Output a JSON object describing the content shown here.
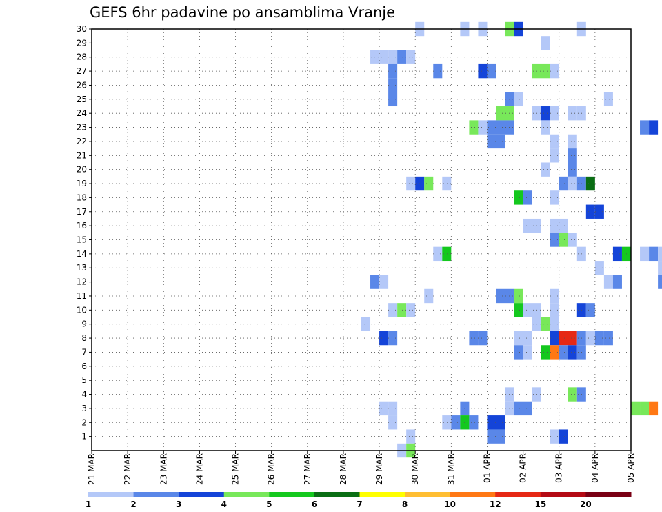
{
  "chart_data": {
    "type": "heatmap",
    "title": "GEFS 6hr padavine po ansamblima Vranje",
    "xlabel": "",
    "ylabel": "",
    "x_range": [
      "21 MAR 00Z",
      "05 APR 00Z"
    ],
    "x_step_hours": 6,
    "x_ticks": [
      "21 MAR",
      "22 MAR",
      "23 MAR",
      "24 MAR",
      "25 MAR",
      "26 MAR",
      "27 MAR",
      "28 MAR",
      "29 MAR",
      "30 MAR",
      "31 MAR",
      "01 APR",
      "02 APR",
      "03 APR",
      "04 APR",
      "05 APR"
    ],
    "y_ticks": [
      1,
      2,
      3,
      4,
      5,
      6,
      7,
      8,
      9,
      10,
      11,
      12,
      13,
      14,
      15,
      16,
      17,
      18,
      19,
      20,
      21,
      22,
      23,
      24,
      25,
      26,
      27,
      28,
      29,
      30
    ],
    "grid": true,
    "colorbar": {
      "levels": [
        "1",
        "2",
        "3",
        "4",
        "5",
        "6",
        "7",
        "8",
        "10",
        "12",
        "15",
        "20"
      ],
      "colors": [
        "#b4c8f8",
        "#5a87e8",
        "#1444d8",
        "#78e85a",
        "#14c81e",
        "#0a6e14",
        "#ffff00",
        "#ffbe32",
        "#ff7814",
        "#e62814",
        "#b40a14",
        "#7a0014"
      ]
    },
    "cells": [
      {
        "date": "30 MAR 06Z",
        "member": 30,
        "value": 1
      },
      {
        "date": "31 MAR 12Z",
        "member": 30,
        "value": 1
      },
      {
        "date": "01 APR 00Z",
        "member": 30,
        "value": 1
      },
      {
        "date": "01 APR 18Z",
        "member": 30,
        "value": 4
      },
      {
        "date": "02 APR 00Z",
        "member": 30,
        "value": 3
      },
      {
        "date": "03 APR 18Z",
        "member": 30,
        "value": 1
      },
      {
        "date": "02 APR 18Z",
        "member": 29,
        "value": 1
      },
      {
        "date": "29 MAR 00Z",
        "member": 28,
        "value": 1
      },
      {
        "date": "29 MAR 06Z",
        "member": 28,
        "value": 1
      },
      {
        "date": "29 MAR 12Z",
        "member": 28,
        "value": 1
      },
      {
        "date": "29 MAR 18Z",
        "member": 28,
        "value": 2
      },
      {
        "date": "30 MAR 00Z",
        "member": 28,
        "value": 1
      },
      {
        "date": "29 MAR 12Z",
        "member": 27,
        "value": 2
      },
      {
        "date": "30 MAR 18Z",
        "member": 27,
        "value": 2
      },
      {
        "date": "01 APR 00Z",
        "member": 27,
        "value": 3
      },
      {
        "date": "01 APR 06Z",
        "member": 27,
        "value": 2
      },
      {
        "date": "02 APR 12Z",
        "member": 27,
        "value": 4
      },
      {
        "date": "02 APR 18Z",
        "member": 27,
        "value": 4
      },
      {
        "date": "03 APR 00Z",
        "member": 27,
        "value": 1
      },
      {
        "date": "29 MAR 12Z",
        "member": 26,
        "value": 2
      },
      {
        "date": "29 MAR 12Z",
        "member": 25,
        "value": 2
      },
      {
        "date": "01 APR 18Z",
        "member": 25,
        "value": 2
      },
      {
        "date": "02 APR 00Z",
        "member": 25,
        "value": 1
      },
      {
        "date": "04 APR 12Z",
        "member": 25,
        "value": 1
      },
      {
        "date": "01 APR 12Z",
        "member": 24,
        "value": 4
      },
      {
        "date": "01 APR 18Z",
        "member": 24,
        "value": 4
      },
      {
        "date": "02 APR 12Z",
        "member": 24,
        "value": 1
      },
      {
        "date": "02 APR 18Z",
        "member": 24,
        "value": 3
      },
      {
        "date": "03 APR 00Z",
        "member": 24,
        "value": 1
      },
      {
        "date": "03 APR 12Z",
        "member": 24,
        "value": 1
      },
      {
        "date": "03 APR 18Z",
        "member": 24,
        "value": 1
      },
      {
        "date": "31 MAR 18Z",
        "member": 23,
        "value": 4
      },
      {
        "date": "01 APR 00Z",
        "member": 23,
        "value": 1
      },
      {
        "date": "01 APR 06Z",
        "member": 23,
        "value": 2
      },
      {
        "date": "01 APR 12Z",
        "member": 23,
        "value": 2
      },
      {
        "date": "01 APR 18Z",
        "member": 23,
        "value": 2
      },
      {
        "date": "02 APR 18Z",
        "member": 23,
        "value": 1
      },
      {
        "date": "05 APR 12Z",
        "member": 23,
        "value": 2
      },
      {
        "date": "05 APR 18Z",
        "member": 23,
        "value": 3
      },
      {
        "date": "01 APR 06Z",
        "member": 22,
        "value": 2
      },
      {
        "date": "01 APR 12Z",
        "member": 22,
        "value": 2
      },
      {
        "date": "03 APR 00Z",
        "member": 22,
        "value": 1
      },
      {
        "date": "03 APR 12Z",
        "member": 22,
        "value": 1
      },
      {
        "date": "03 APR 00Z",
        "member": 21,
        "value": 1
      },
      {
        "date": "03 APR 12Z",
        "member": 21,
        "value": 2
      },
      {
        "date": "02 APR 18Z",
        "member": 20,
        "value": 1
      },
      {
        "date": "03 APR 12Z",
        "member": 20,
        "value": 2
      },
      {
        "date": "30 MAR 00Z",
        "member": 19,
        "value": 1
      },
      {
        "date": "30 MAR 06Z",
        "member": 19,
        "value": 3
      },
      {
        "date": "30 MAR 12Z",
        "member": 19,
        "value": 4
      },
      {
        "date": "31 MAR 00Z",
        "member": 19,
        "value": 1
      },
      {
        "date": "03 APR 06Z",
        "member": 19,
        "value": 2
      },
      {
        "date": "03 APR 12Z",
        "member": 19,
        "value": 1
      },
      {
        "date": "03 APR 18Z",
        "member": 19,
        "value": 2
      },
      {
        "date": "04 APR 00Z",
        "member": 19,
        "value": 6
      },
      {
        "date": "02 APR 00Z",
        "member": 18,
        "value": 5
      },
      {
        "date": "02 APR 06Z",
        "member": 18,
        "value": 2
      },
      {
        "date": "03 APR 00Z",
        "member": 18,
        "value": 1
      },
      {
        "date": "04 APR 00Z",
        "member": 17,
        "value": 3
      },
      {
        "date": "04 APR 06Z",
        "member": 17,
        "value": 3
      },
      {
        "date": "02 APR 06Z",
        "member": 16,
        "value": 1
      },
      {
        "date": "02 APR 12Z",
        "member": 16,
        "value": 1
      },
      {
        "date": "03 APR 00Z",
        "member": 16,
        "value": 1
      },
      {
        "date": "03 APR 06Z",
        "member": 16,
        "value": 1
      },
      {
        "date": "03 APR 00Z",
        "member": 15,
        "value": 2
      },
      {
        "date": "03 APR 06Z",
        "member": 15,
        "value": 4
      },
      {
        "date": "03 APR 12Z",
        "member": 15,
        "value": 1
      },
      {
        "date": "30 MAR 18Z",
        "member": 14,
        "value": 1
      },
      {
        "date": "31 MAR 00Z",
        "member": 14,
        "value": 5
      },
      {
        "date": "03 APR 18Z",
        "member": 14,
        "value": 1
      },
      {
        "date": "04 APR 18Z",
        "member": 14,
        "value": 3
      },
      {
        "date": "05 APR 00Z",
        "member": 14,
        "value": 5
      },
      {
        "date": "05 APR 12Z",
        "member": 14,
        "value": 1
      },
      {
        "date": "05 APR 18Z",
        "member": 14,
        "value": 2
      },
      {
        "date": "06 APR 00Z",
        "member": 14,
        "value": 1
      },
      {
        "date": "04 APR 06Z",
        "member": 13,
        "value": 1
      },
      {
        "date": "06 APR 00Z",
        "member": 13,
        "value": 1
      },
      {
        "date": "29 MAR 00Z",
        "member": 12,
        "value": 2
      },
      {
        "date": "29 MAR 06Z",
        "member": 12,
        "value": 1
      },
      {
        "date": "04 APR 12Z",
        "member": 12,
        "value": 1
      },
      {
        "date": "04 APR 18Z",
        "member": 12,
        "value": 2
      },
      {
        "date": "06 APR 00Z",
        "member": 12,
        "value": 2
      },
      {
        "date": "30 MAR 12Z",
        "member": 11,
        "value": 1
      },
      {
        "date": "01 APR 12Z",
        "member": 11,
        "value": 2
      },
      {
        "date": "01 APR 18Z",
        "member": 11,
        "value": 2
      },
      {
        "date": "02 APR 00Z",
        "member": 11,
        "value": 4
      },
      {
        "date": "03 APR 00Z",
        "member": 11,
        "value": 1
      },
      {
        "date": "06 APR 06Z",
        "member": 11,
        "value": 2
      },
      {
        "date": "29 MAR 12Z",
        "member": 10,
        "value": 1
      },
      {
        "date": "29 MAR 18Z",
        "member": 10,
        "value": 4
      },
      {
        "date": "30 MAR 00Z",
        "member": 10,
        "value": 1
      },
      {
        "date": "02 APR 00Z",
        "member": 10,
        "value": 5
      },
      {
        "date": "02 APR 06Z",
        "member": 10,
        "value": 1
      },
      {
        "date": "02 APR 12Z",
        "member": 10,
        "value": 1
      },
      {
        "date": "03 APR 00Z",
        "member": 10,
        "value": 1
      },
      {
        "date": "03 APR 18Z",
        "member": 10,
        "value": 3
      },
      {
        "date": "04 APR 00Z",
        "member": 10,
        "value": 2
      },
      {
        "date": "28 MAR 18Z",
        "member": 9,
        "value": 1
      },
      {
        "date": "02 APR 12Z",
        "member": 9,
        "value": 1
      },
      {
        "date": "02 APR 18Z",
        "member": 9,
        "value": 4
      },
      {
        "date": "03 APR 00Z",
        "member": 9,
        "value": 1
      },
      {
        "date": "29 MAR 06Z",
        "member": 8,
        "value": 3
      },
      {
        "date": "29 MAR 12Z",
        "member": 8,
        "value": 2
      },
      {
        "date": "31 MAR 18Z",
        "member": 8,
        "value": 2
      },
      {
        "date": "01 APR 00Z",
        "member": 8,
        "value": 2
      },
      {
        "date": "02 APR 00Z",
        "member": 8,
        "value": 1
      },
      {
        "date": "02 APR 06Z",
        "member": 8,
        "value": 1
      },
      {
        "date": "03 APR 00Z",
        "member": 8,
        "value": 3
      },
      {
        "date": "03 APR 06Z",
        "member": 8,
        "value": 12
      },
      {
        "date": "03 APR 12Z",
        "member": 8,
        "value": 12
      },
      {
        "date": "03 APR 18Z",
        "member": 8,
        "value": 2
      },
      {
        "date": "04 APR 00Z",
        "member": 8,
        "value": 1
      },
      {
        "date": "04 APR 06Z",
        "member": 8,
        "value": 2
      },
      {
        "date": "04 APR 12Z",
        "member": 8,
        "value": 2
      },
      {
        "date": "02 APR 00Z",
        "member": 7,
        "value": 2
      },
      {
        "date": "02 APR 06Z",
        "member": 7,
        "value": 1
      },
      {
        "date": "02 APR 18Z",
        "member": 7,
        "value": 5
      },
      {
        "date": "03 APR 00Z",
        "member": 7,
        "value": 10
      },
      {
        "date": "03 APR 06Z",
        "member": 7,
        "value": 2
      },
      {
        "date": "03 APR 12Z",
        "member": 7,
        "value": 3
      },
      {
        "date": "03 APR 18Z",
        "member": 7,
        "value": 2
      },
      {
        "date": "01 APR 18Z",
        "member": 4,
        "value": 1
      },
      {
        "date": "02 APR 12Z",
        "member": 4,
        "value": 1
      },
      {
        "date": "03 APR 12Z",
        "member": 4,
        "value": 4
      },
      {
        "date": "03 APR 18Z",
        "member": 4,
        "value": 2
      },
      {
        "date": "29 MAR 06Z",
        "member": 3,
        "value": 1
      },
      {
        "date": "29 MAR 12Z",
        "member": 3,
        "value": 1
      },
      {
        "date": "31 MAR 12Z",
        "member": 3,
        "value": 2
      },
      {
        "date": "01 APR 18Z",
        "member": 3,
        "value": 1
      },
      {
        "date": "02 APR 00Z",
        "member": 3,
        "value": 2
      },
      {
        "date": "02 APR 06Z",
        "member": 3,
        "value": 2
      },
      {
        "date": "05 APR 06Z",
        "member": 3,
        "value": 4
      },
      {
        "date": "05 APR 12Z",
        "member": 3,
        "value": 4
      },
      {
        "date": "05 APR 18Z",
        "member": 3,
        "value": 10
      },
      {
        "date": "29 MAR 12Z",
        "member": 2,
        "value": 1
      },
      {
        "date": "31 MAR 00Z",
        "member": 2,
        "value": 1
      },
      {
        "date": "31 MAR 06Z",
        "member": 2,
        "value": 2
      },
      {
        "date": "31 MAR 12Z",
        "member": 2,
        "value": 5
      },
      {
        "date": "31 MAR 18Z",
        "member": 2,
        "value": 2
      },
      {
        "date": "01 APR 06Z",
        "member": 2,
        "value": 3
      },
      {
        "date": "01 APR 12Z",
        "member": 2,
        "value": 3
      },
      {
        "date": "06 APR 06Z",
        "member": 2,
        "value": 2
      },
      {
        "date": "30 MAR 00Z",
        "member": 1,
        "value": 1
      },
      {
        "date": "01 APR 06Z",
        "member": 1,
        "value": 2
      },
      {
        "date": "01 APR 12Z",
        "member": 1,
        "value": 2
      },
      {
        "date": "03 APR 00Z",
        "member": 1,
        "value": 1
      },
      {
        "date": "03 APR 06Z",
        "member": 1,
        "value": 3
      },
      {
        "date": "29 MAR 18Z",
        "member": 0,
        "value": 1
      },
      {
        "date": "30 MAR 00Z",
        "member": 0,
        "value": 4
      }
    ]
  }
}
